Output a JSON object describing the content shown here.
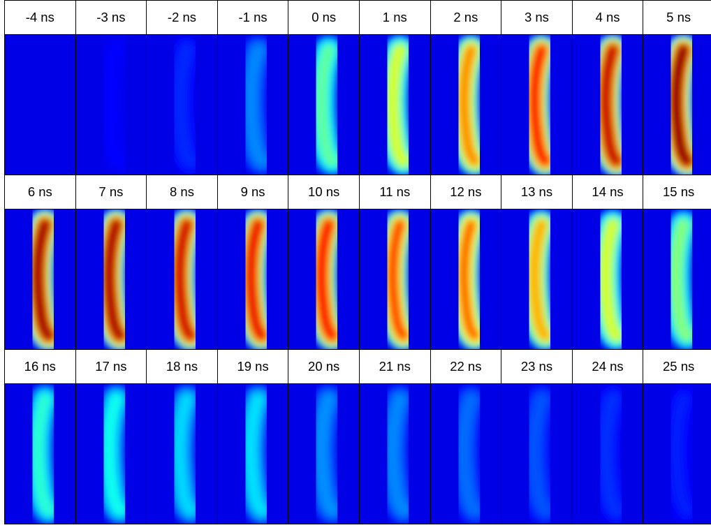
{
  "rows": [
    {
      "frames": [
        {
          "label": "-4 ns",
          "level": 0.0
        },
        {
          "label": "-3 ns",
          "level": 0.03
        },
        {
          "label": "-2 ns",
          "level": 0.07
        },
        {
          "label": "-1 ns",
          "level": 0.18
        },
        {
          "label": "0 ns",
          "level": 0.42
        },
        {
          "label": "1 ns",
          "level": 0.55
        },
        {
          "label": "2 ns",
          "level": 0.72
        },
        {
          "label": "3 ns",
          "level": 0.86
        },
        {
          "label": "4 ns",
          "level": 0.94
        },
        {
          "label": "5 ns",
          "level": 1.0
        }
      ]
    },
    {
      "frames": [
        {
          "label": "6 ns",
          "level": 0.98
        },
        {
          "label": "7 ns",
          "level": 0.97
        },
        {
          "label": "8 ns",
          "level": 0.93
        },
        {
          "label": "9 ns",
          "level": 0.9
        },
        {
          "label": "10 ns",
          "level": 0.88
        },
        {
          "label": "11 ns",
          "level": 0.8
        },
        {
          "label": "12 ns",
          "level": 0.76
        },
        {
          "label": "13 ns",
          "level": 0.68
        },
        {
          "label": "14 ns",
          "level": 0.55
        },
        {
          "label": "15 ns",
          "level": 0.46
        }
      ]
    },
    {
      "frames": [
        {
          "label": "16 ns",
          "level": 0.36
        },
        {
          "label": "17 ns",
          "level": 0.33
        },
        {
          "label": "18 ns",
          "level": 0.27
        },
        {
          "label": "19 ns",
          "level": 0.28
        },
        {
          "label": "20 ns",
          "level": 0.19
        },
        {
          "label": "21 ns",
          "level": 0.18
        },
        {
          "label": "22 ns",
          "level": 0.15
        },
        {
          "label": "23 ns",
          "level": 0.12
        },
        {
          "label": "24 ns",
          "level": 0.08
        },
        {
          "label": "25 ns",
          "level": 0.06
        }
      ]
    }
  ]
}
